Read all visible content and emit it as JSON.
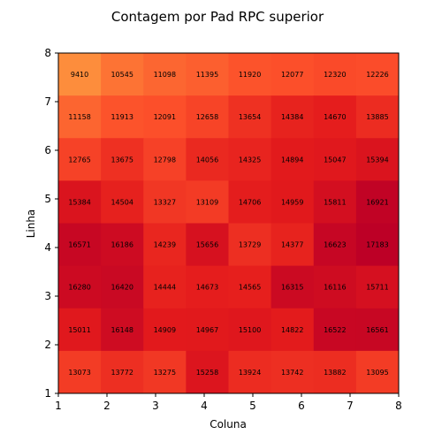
{
  "chart_data": {
    "type": "heatmap",
    "title": "Contagem por Pad RPC superior",
    "xlabel": "Coluna",
    "ylabel": "Linha",
    "xlim": [
      1,
      8
    ],
    "ylim": [
      1,
      8
    ],
    "xticks": [
      "1",
      "2",
      "3",
      "4",
      "5",
      "6",
      "7",
      "8"
    ],
    "yticks": [
      "1",
      "2",
      "3",
      "4",
      "5",
      "6",
      "7",
      "8"
    ],
    "colormap": "YlOrRd",
    "color_range": [
      9410,
      17183
    ],
    "rows_top_to_bottom": [
      [
        9410,
        10545,
        11098,
        11395,
        11920,
        12077,
        12320,
        12226
      ],
      [
        11158,
        11913,
        12091,
        12658,
        13654,
        14384,
        14670,
        13885
      ],
      [
        12765,
        13675,
        12798,
        14056,
        14325,
        14894,
        15047,
        15394
      ],
      [
        15384,
        14504,
        13327,
        13109,
        14706,
        14959,
        15811,
        16921
      ],
      [
        16571,
        16186,
        14239,
        15656,
        13729,
        14377,
        16623,
        17183
      ],
      [
        16280,
        16420,
        14444,
        14673,
        14565,
        16315,
        16116,
        15711
      ],
      [
        15011,
        16148,
        14909,
        14967,
        15100,
        14822,
        16522,
        16561
      ],
      [
        13073,
        13772,
        13275,
        15258,
        13924,
        13742,
        13882,
        13095
      ]
    ]
  }
}
